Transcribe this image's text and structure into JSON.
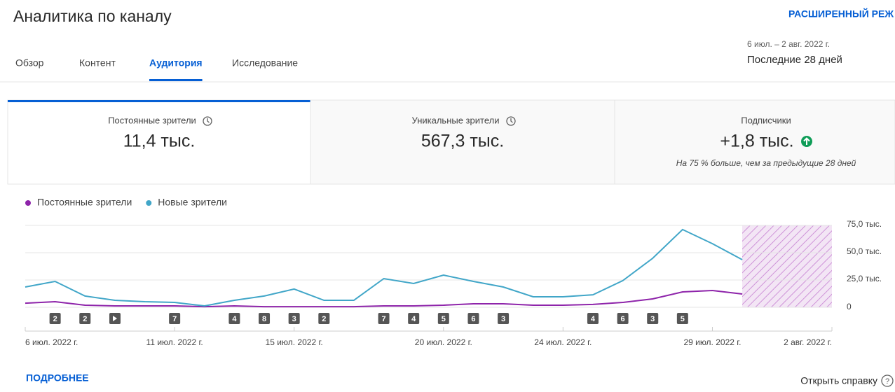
{
  "header": {
    "title": "Аналитика по каналу",
    "advanced_mode": "РАСШИРЕННЫЙ РЕЖ",
    "date_range": "6 июл. – 2 авг. 2022 г.",
    "period": "Последние 28 дней"
  },
  "tabs": [
    "Обзор",
    "Контент",
    "Аудитория",
    "Исследование"
  ],
  "cards": [
    {
      "title": "Постоянные зрители",
      "value": "11,4 тыс."
    },
    {
      "title": "Уникальные зрители",
      "value": "567,3 тыс."
    },
    {
      "title": "Подписчики",
      "value": "+1,8 тыс.",
      "note": "На 75 % больше, чем за предыдущие 28 дней"
    }
  ],
  "chart_data": {
    "type": "line",
    "categories": [
      "6 июл. 2022 г.",
      null,
      null,
      null,
      null,
      "11 июл. 2022 г.",
      null,
      null,
      null,
      "15 июл. 2022 г.",
      null,
      null,
      null,
      null,
      "20 июл. 2022 г.",
      null,
      null,
      null,
      "24 июл. 2022 г.",
      null,
      null,
      null,
      null,
      "29 июл. 2022 г.",
      null,
      null,
      null,
      "2 авг. 2022 г."
    ],
    "series": [
      {
        "name": "Постоянные зрители",
        "color": "#8e24aa",
        "values": [
          3.8,
          5.1,
          1.9,
          1.3,
          1.3,
          1.3,
          0.6,
          1.3,
          0.6,
          0.6,
          0.6,
          0.6,
          1.3,
          1.3,
          1.9,
          3.2,
          3.2,
          1.9,
          1.9,
          2.6,
          4.5,
          7.7,
          14.1,
          15.4,
          12.2,
          null,
          null,
          null
        ]
      },
      {
        "name": "Новые зрители",
        "color": "#41a6c8",
        "values": [
          18.6,
          23.7,
          10.3,
          6.4,
          5.1,
          4.5,
          1.3,
          6.4,
          10.3,
          16.7,
          6.4,
          6.4,
          26.3,
          21.8,
          29.5,
          23.7,
          18.6,
          9.6,
          9.6,
          11.5,
          24.4,
          44.9,
          71.2,
          58.3,
          43.6,
          null,
          null,
          null
        ]
      }
    ],
    "video_markers": [
      null,
      2,
      2,
      null,
      null,
      7,
      null,
      4,
      8,
      3,
      2,
      null,
      7,
      4,
      5,
      6,
      3,
      null,
      null,
      4,
      6,
      3,
      5,
      null,
      null,
      null,
      null,
      null
    ],
    "ylim": [
      0,
      75
    ],
    "yticks": [
      0,
      {
        "value": 25,
        "label": "25,0 тыс."
      },
      {
        "value": 50,
        "label": "50,0 тыс."
      },
      {
        "value": 75,
        "label": "75,0 тыс."
      }
    ],
    "grid": true,
    "legend": "top-left"
  },
  "footer": {
    "more": "ПОДРОБНЕЕ",
    "help": "Открыть справку"
  }
}
